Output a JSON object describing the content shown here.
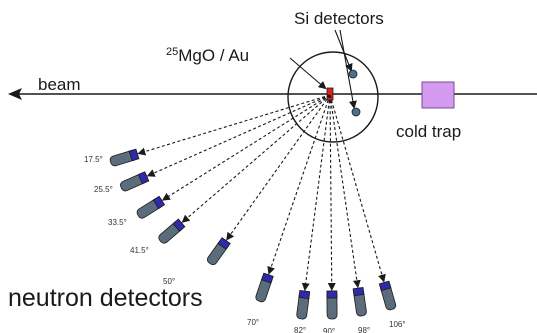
{
  "labels": {
    "si_detectors": "Si detectors",
    "target_sup": "25",
    "target_rest": "MgO / Au",
    "beam": "beam",
    "cold_trap": "cold trap",
    "neutron_detectors": "neutron detectors"
  },
  "detector_angles": [
    "17.5°",
    "25.5°",
    "33.5°",
    "41.5°",
    "50°",
    "70°",
    "82°",
    "90°",
    "98°",
    "106°"
  ],
  "colors": {
    "line": "#1a1a1a",
    "detector_body": "#5b6c7d",
    "detector_cap": "#2f2aa8",
    "target": "#e0201c",
    "si_detector": "#4f6f8f",
    "cold_trap_fill": "#d49af0",
    "cold_trap_stroke": "#7a4a96"
  }
}
